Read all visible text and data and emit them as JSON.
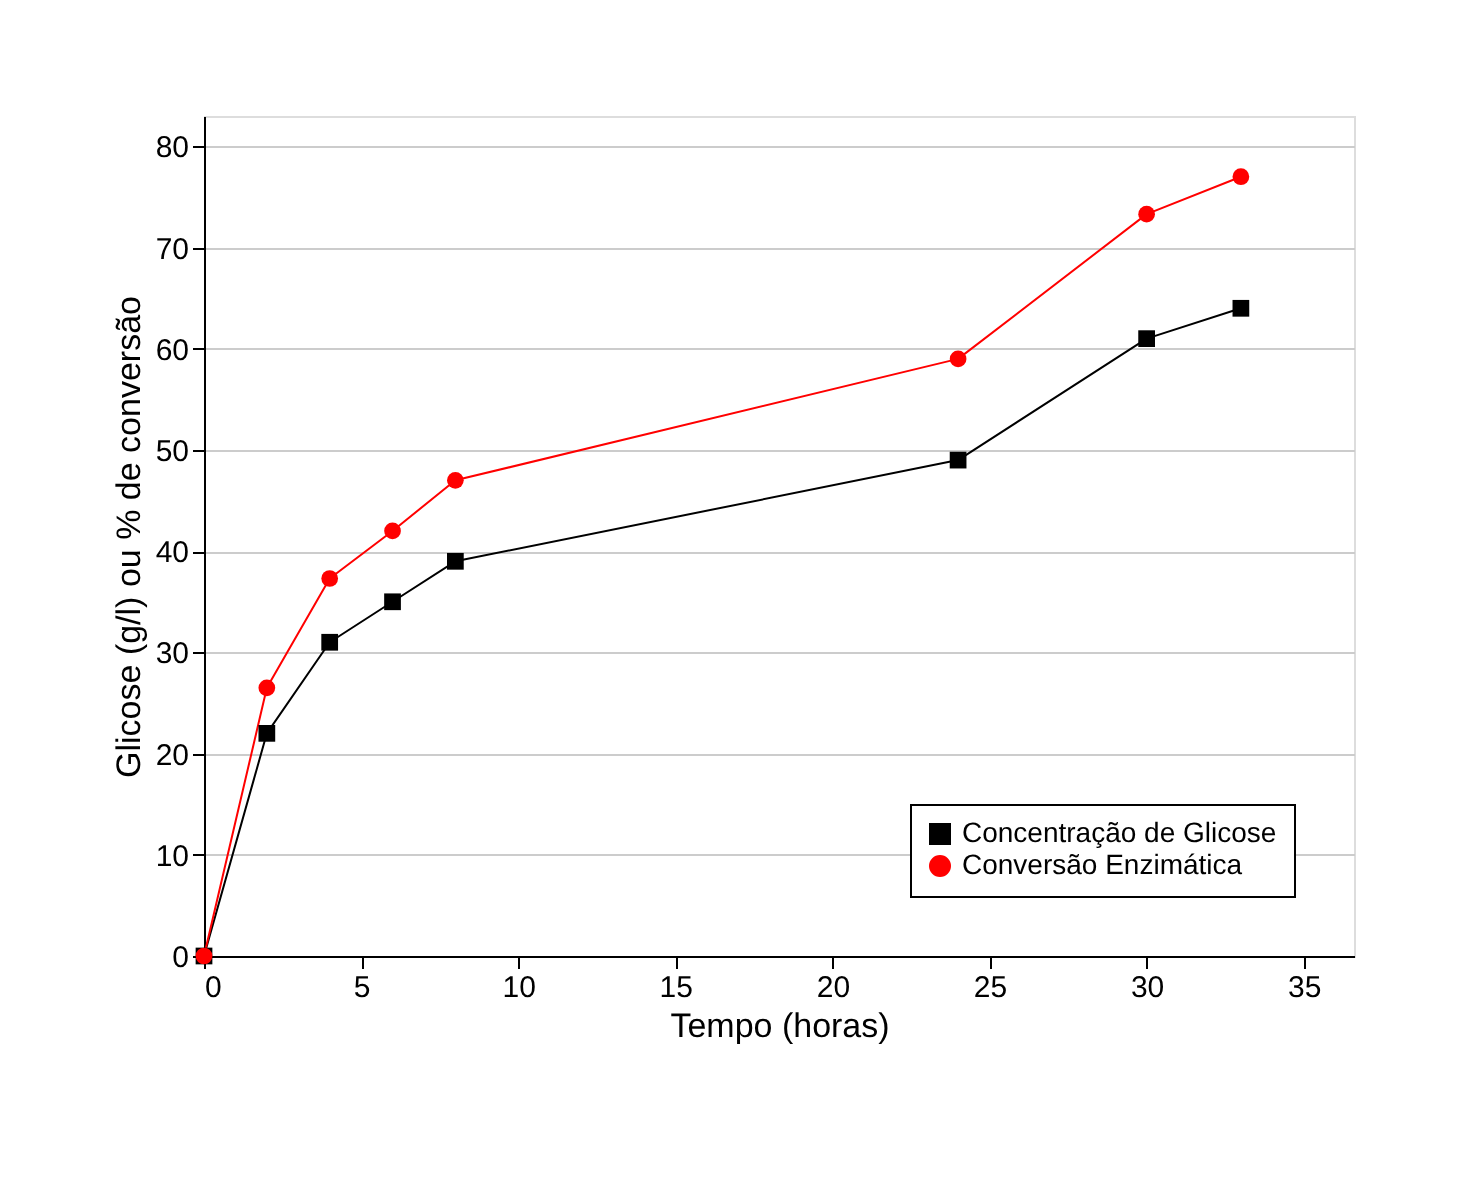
{
  "chart_data": {
    "type": "line",
    "xlabel": "Tempo (horas)",
    "ylabel": "Glicose (g/l) ou % de conversão",
    "xlim": [
      0,
      36.6
    ],
    "xticks": [
      0,
      5,
      10,
      15,
      20,
      25,
      30,
      35
    ],
    "ylim": [
      0,
      83
    ],
    "yticks": [
      0,
      10,
      20,
      30,
      40,
      50,
      60,
      70,
      80
    ],
    "grid": "y",
    "legend": "bottom right",
    "line_style": "solid",
    "series": [
      {
        "name": "Concentração de Glicose",
        "color": "#000000",
        "marker": "square",
        "x": [
          0,
          2,
          4,
          6,
          8,
          24,
          30,
          33
        ],
        "values": [
          0,
          22,
          31,
          35,
          39,
          49,
          61,
          64
        ]
      },
      {
        "name": "Conversão Enzimática",
        "color": "#ff0000",
        "marker": "circle",
        "x": [
          0,
          2,
          4,
          6,
          8,
          24,
          30,
          33
        ],
        "values": [
          0,
          26.5,
          37.3,
          42,
          47,
          59,
          73.3,
          77
        ]
      }
    ]
  }
}
